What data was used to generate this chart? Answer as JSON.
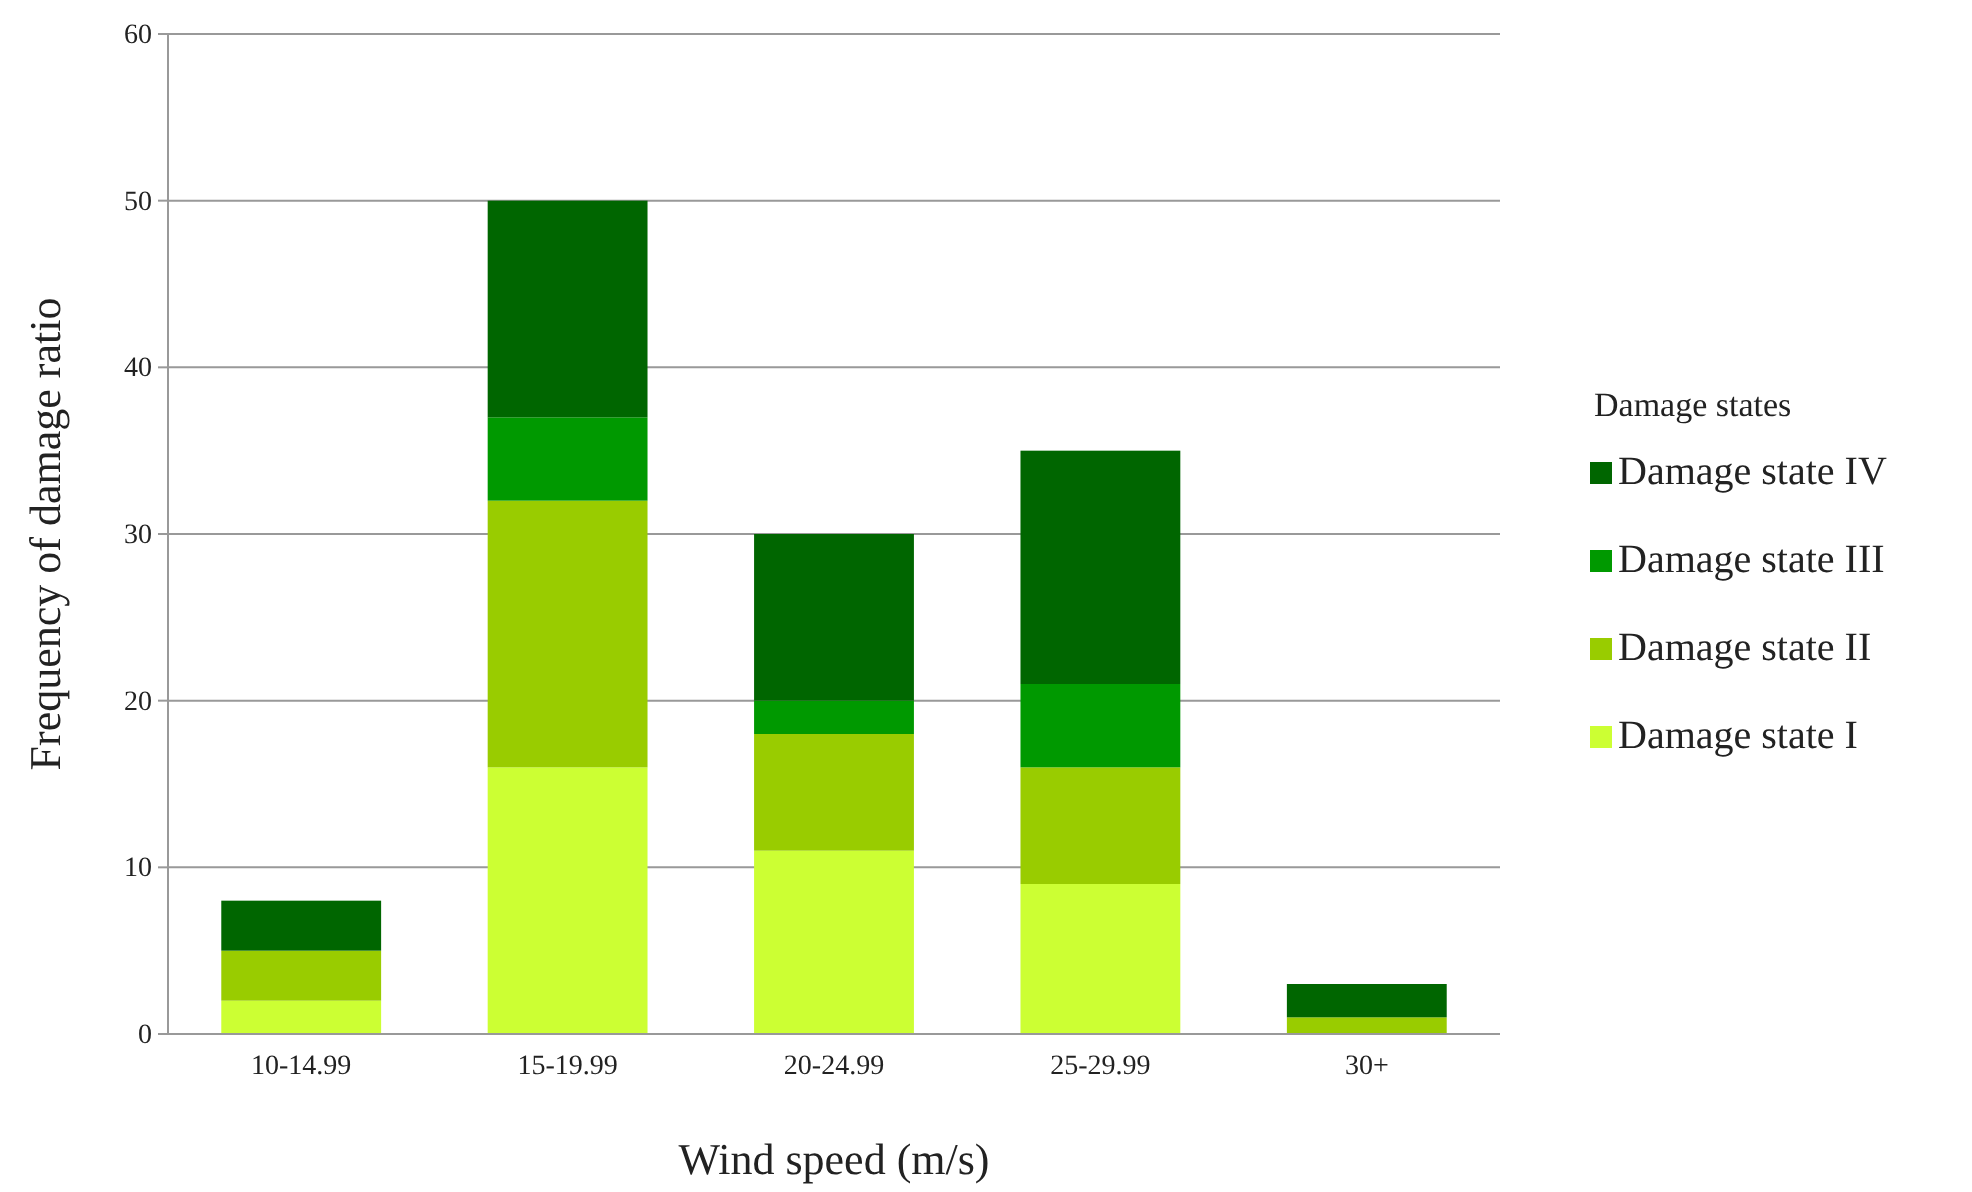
{
  "chart_data": {
    "type": "bar",
    "xlabel": "Wind speed (m/s)",
    "ylabel": "Frequency of damage ratio",
    "legend_title": "Damage states",
    "categories": [
      "10-14.99",
      "15-19.99",
      "20-24.99",
      "25-29.99",
      "30+"
    ],
    "stacked": true,
    "series": [
      {
        "name": "Damage state I",
        "color": "#ccff33",
        "values": [
          2,
          16,
          11,
          9,
          0
        ]
      },
      {
        "name": "Damage state II",
        "color": "#99cc00",
        "values": [
          3,
          16,
          7,
          7,
          1
        ]
      },
      {
        "name": "Damage state III",
        "color": "#009900",
        "values": [
          0,
          5,
          2,
          5,
          0
        ]
      },
      {
        "name": "Damage state IV",
        "color": "#006600",
        "values": [
          3,
          13,
          10,
          14,
          2
        ]
      }
    ],
    "ylim": [
      0,
      60
    ],
    "yticks": [
      0,
      10,
      20,
      30,
      40,
      50,
      60
    ],
    "grid": "y",
    "legend": "right"
  }
}
